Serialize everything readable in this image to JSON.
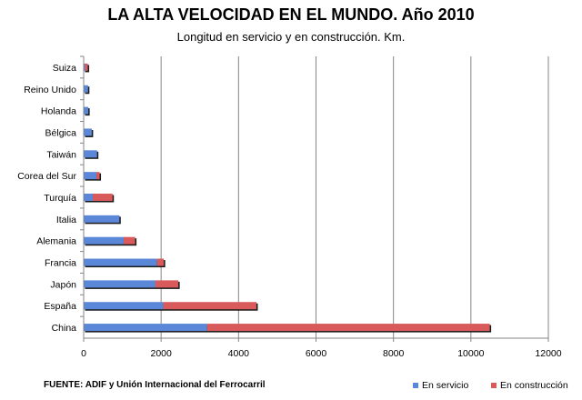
{
  "title": "LA ALTA VELOCIDAD EN EL MUNDO. Año 2010",
  "subtitle": "Longitud en servicio y en construcción. Km.",
  "source": "FUENTE: ADIF y Unión Internacional del Ferrocarril",
  "colors": {
    "in_service": "#5b87d8",
    "under_construction": "#d85a5a",
    "grid": "#868686",
    "axis": "#868686"
  },
  "chart_data": {
    "type": "bar",
    "orientation": "horizontal",
    "stacked": true,
    "categories": [
      "Suiza",
      "Reino Unido",
      "Holanda",
      "Bélgica",
      "Taiwán",
      "Corea del Sur",
      "Turquía",
      "Italia",
      "Alemania",
      "Francia",
      "Japón",
      "España",
      "China"
    ],
    "series": [
      {
        "name": "En servicio",
        "values": [
          35,
          113,
          120,
          209,
          345,
          330,
          235,
          923,
          1032,
          1896,
          1855,
          2056,
          3188
        ]
      },
      {
        "name": "En construcción",
        "values": [
          72,
          0,
          0,
          0,
          0,
          82,
          510,
          0,
          297,
          174,
          590,
          2405,
          7300
        ]
      }
    ],
    "title": "LA ALTA VELOCIDAD EN EL MUNDO. Año 2010",
    "subtitle": "Longitud en servicio y en construcción. Km.",
    "xlabel": "",
    "ylabel": "",
    "xlim": [
      0,
      12000
    ],
    "xticks": [
      0,
      2000,
      4000,
      6000,
      8000,
      10000,
      12000
    ],
    "xtick_labels": [
      "0",
      "2000",
      "4000",
      "6000",
      "8000",
      "10000",
      "12000"
    ],
    "grid": "vertical",
    "legend_position": "bottom-right"
  }
}
